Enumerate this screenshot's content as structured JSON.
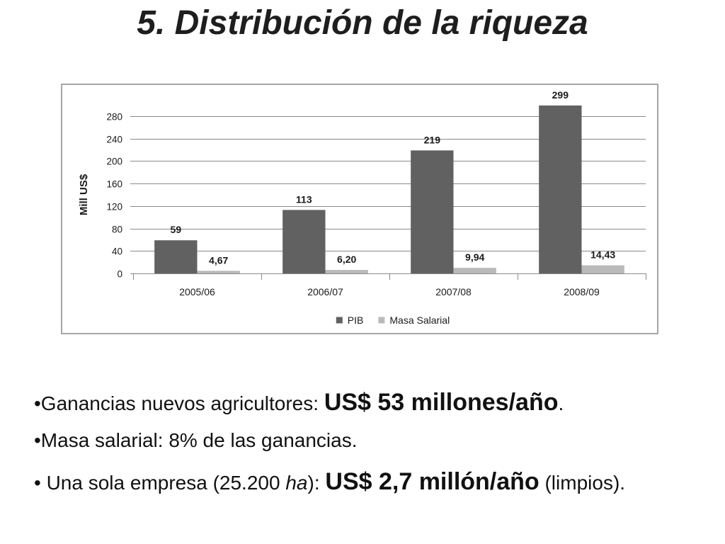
{
  "slide": {
    "title": "5. Distribución de la riqueza"
  },
  "chart_data": {
    "type": "bar",
    "title": "",
    "xlabel": "",
    "ylabel": "Mill US$",
    "categories": [
      "2005/06",
      "2006/07",
      "2007/08",
      "2008/09"
    ],
    "series": [
      {
        "name": "PIB",
        "values": [
          59,
          113,
          219,
          299
        ],
        "data_labels": [
          "59",
          "113",
          "219",
          "299"
        ],
        "color": "#616161"
      },
      {
        "name": "Masa Salarial",
        "values": [
          4.67,
          6.2,
          9.94,
          14.43
        ],
        "data_labels": [
          "4,67",
          "6,20",
          "9,94",
          "14,43"
        ],
        "color": "#bababa"
      }
    ],
    "yticks": [
      0,
      40,
      80,
      120,
      160,
      200,
      240,
      280
    ],
    "ylim": [
      0,
      280
    ],
    "grid": true,
    "legend": "bottom"
  },
  "bullets": {
    "ganancias": {
      "lead": "•Ganancias nuevos agricultores: ",
      "highlight": "US$ 53 millones/año",
      "tail": "."
    },
    "masa": {
      "text": "•Masa salarial: 8% de las ganancias."
    },
    "empresa": {
      "lead": "• Una sola empresa (25.200 ",
      "italic": "ha",
      "mid": "): ",
      "highlight": "US$ 2,7 millón/año",
      "tail": " (limpios)."
    }
  },
  "colors": {
    "text": "#111111",
    "grid": "#8a8a8a",
    "frame": "#a6a6a6"
  }
}
